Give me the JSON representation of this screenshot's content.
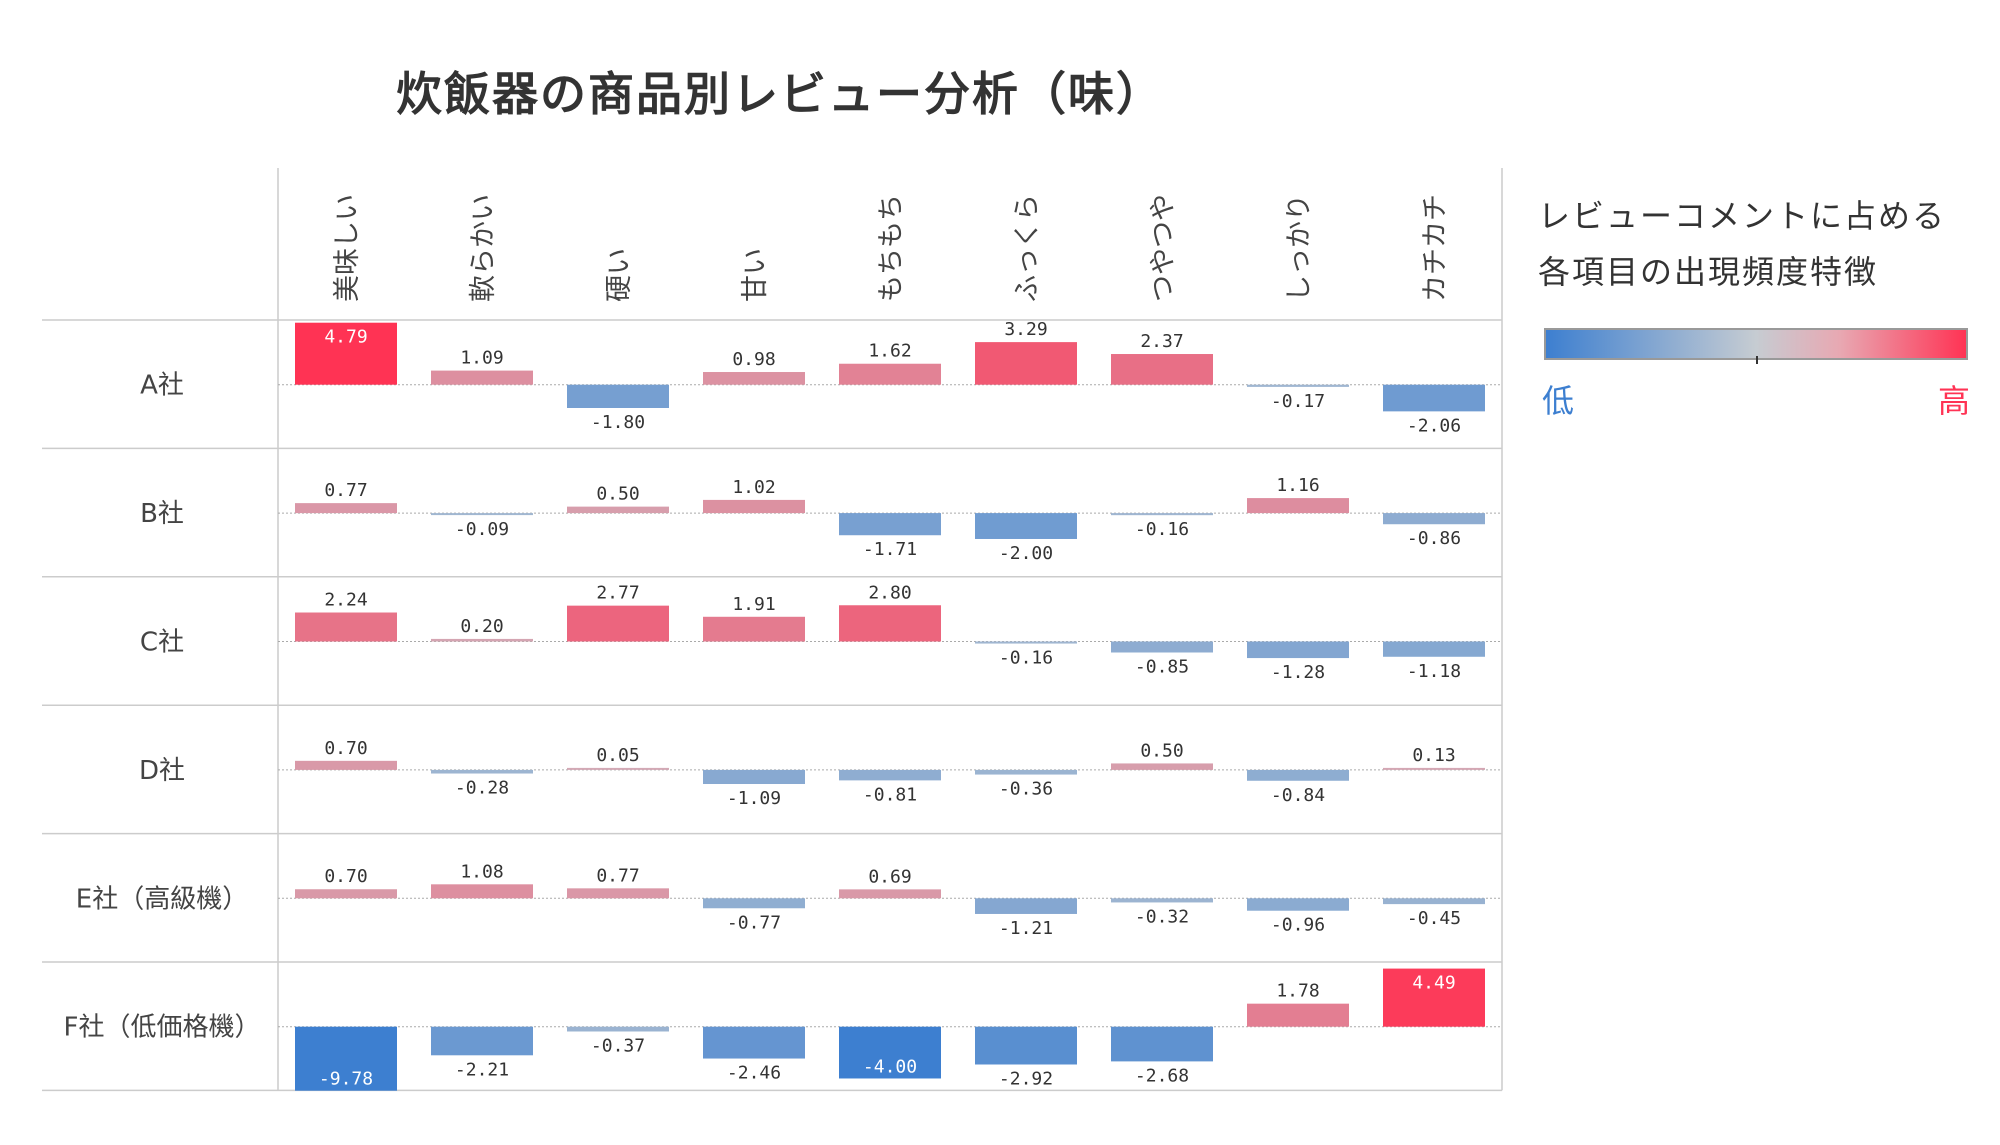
{
  "chart_data": {
    "type": "bar",
    "title": "炊飯器の商品別レビュー分析（味）",
    "categories": [
      "美味しい",
      "軟らかい",
      "硬い",
      "甘い",
      "もちもち",
      "ふっくら",
      "つやつや",
      "しっかり",
      "カチカチ"
    ],
    "series": [
      {
        "name": "A社",
        "values": [
          4.79,
          1.09,
          -1.8,
          0.98,
          1.62,
          3.29,
          2.37,
          -0.17,
          -2.06
        ]
      },
      {
        "name": "B社",
        "values": [
          0.77,
          -0.09,
          0.5,
          1.02,
          -1.71,
          -2.0,
          -0.16,
          1.16,
          -0.86
        ]
      },
      {
        "name": "C社",
        "values": [
          2.24,
          0.2,
          2.77,
          1.91,
          2.8,
          -0.16,
          -0.85,
          -1.28,
          -1.18
        ]
      },
      {
        "name": "D社",
        "values": [
          0.7,
          -0.28,
          0.05,
          -1.09,
          -0.81,
          -0.36,
          0.5,
          -0.84,
          0.13
        ]
      },
      {
        "name": "E社（高級機）",
        "values": [
          0.7,
          1.08,
          0.77,
          -0.77,
          0.69,
          -1.21,
          -0.32,
          -0.96,
          -0.45
        ]
      },
      {
        "name": "F社（低価格機）",
        "values": [
          -9.78,
          -2.21,
          -0.37,
          -2.46,
          -4.0,
          -2.92,
          -2.68,
          1.78,
          4.49
        ]
      }
    ],
    "color_scale": {
      "low": "#3d7fd0",
      "mid": "#c6ccd2",
      "high": "#ff3354"
    },
    "legend": {
      "title": "レビューコメントに占める\n各項目の出現頻度特徴",
      "low_label": "低",
      "high_label": "高",
      "low_color": "#3d7fd0",
      "high_color": "#ff3354"
    }
  }
}
